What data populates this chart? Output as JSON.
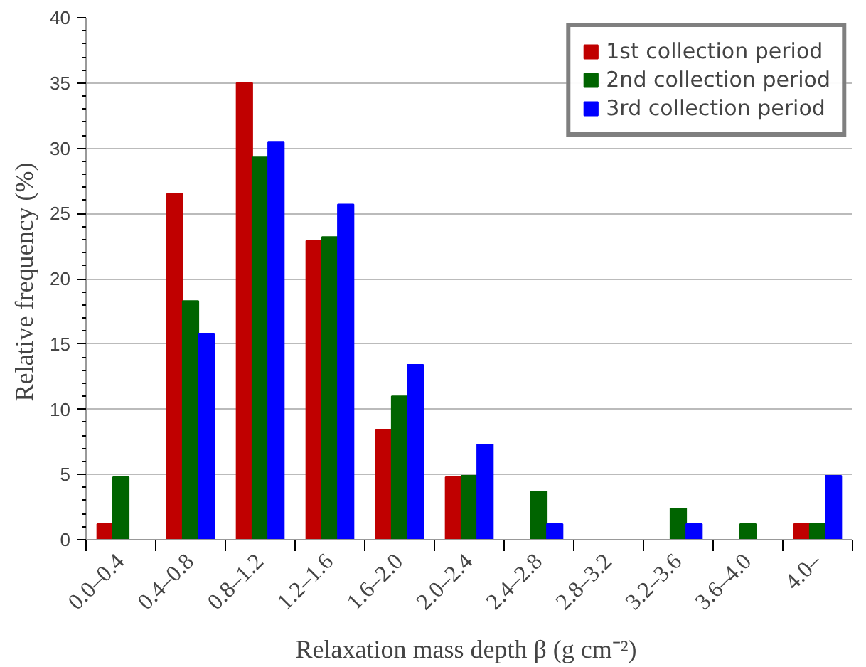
{
  "chart_data": {
    "type": "bar",
    "xlabel": "Relaxation  mass depth β (g cm⁻²)",
    "ylabel": "Relative frequency  (%)",
    "categories": [
      "0.0–0.4",
      "0.4–0.8",
      "0.8–1.2",
      "1.2–1.6",
      "1.6–2.0",
      "2.0–2.4",
      "2.4–2.8",
      "2.8–3.2",
      "3.2–3.6",
      "3.6–4.0",
      "4.0–"
    ],
    "series": [
      {
        "name": "1st collection period",
        "color": "#c00000",
        "values": [
          1.2,
          26.5,
          35.0,
          22.9,
          8.4,
          4.8,
          0,
          0,
          0,
          0,
          1.2
        ]
      },
      {
        "name": "2nd collection period",
        "color": "#006400",
        "values": [
          4.8,
          18.3,
          29.3,
          23.2,
          11.0,
          4.9,
          3.7,
          0,
          2.4,
          1.2,
          1.2
        ]
      },
      {
        "name": "3rd collection period",
        "color": "#0000ff",
        "values": [
          0,
          15.8,
          30.5,
          25.7,
          13.4,
          7.3,
          1.2,
          0,
          1.2,
          0,
          4.9
        ]
      }
    ],
    "ylim": [
      0,
      40
    ],
    "yticks": [
      0,
      5,
      10,
      15,
      20,
      25,
      30,
      35,
      40
    ],
    "grid": "y",
    "legend": "top right"
  }
}
